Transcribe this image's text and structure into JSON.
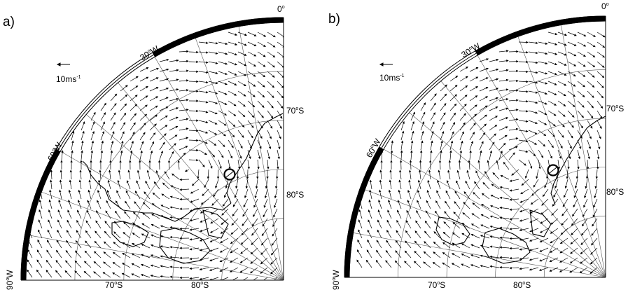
{
  "panels": [
    {
      "id": "a",
      "letter": "a)",
      "labels": {
        "lon_0": "0",
        "lon_30w": "30",
        "lon_60w": "60",
        "lon_90w": "90",
        "lat_70s_right": "70",
        "lat_80s_right": "80",
        "lat_70s_bottom": "70",
        "lat_80s_bottom": "80"
      },
      "reference_vector": {
        "speed": "10ms",
        "unit_exp": "-1"
      }
    },
    {
      "id": "b",
      "letter": "b)",
      "labels": {
        "lon_0": "0",
        "lon_30w": "30",
        "lon_60w": "60",
        "lon_90w": "90",
        "lat_70s_right": "70",
        "lat_80s_right": "80",
        "lat_70s_bottom": "70",
        "lat_80s_bottom": "80"
      },
      "reference_vector": {
        "speed": "10ms",
        "unit_exp": "-1"
      }
    }
  ],
  "colors": {
    "ink": "#000000",
    "background": "#ffffff",
    "grid": "#555555"
  }
}
